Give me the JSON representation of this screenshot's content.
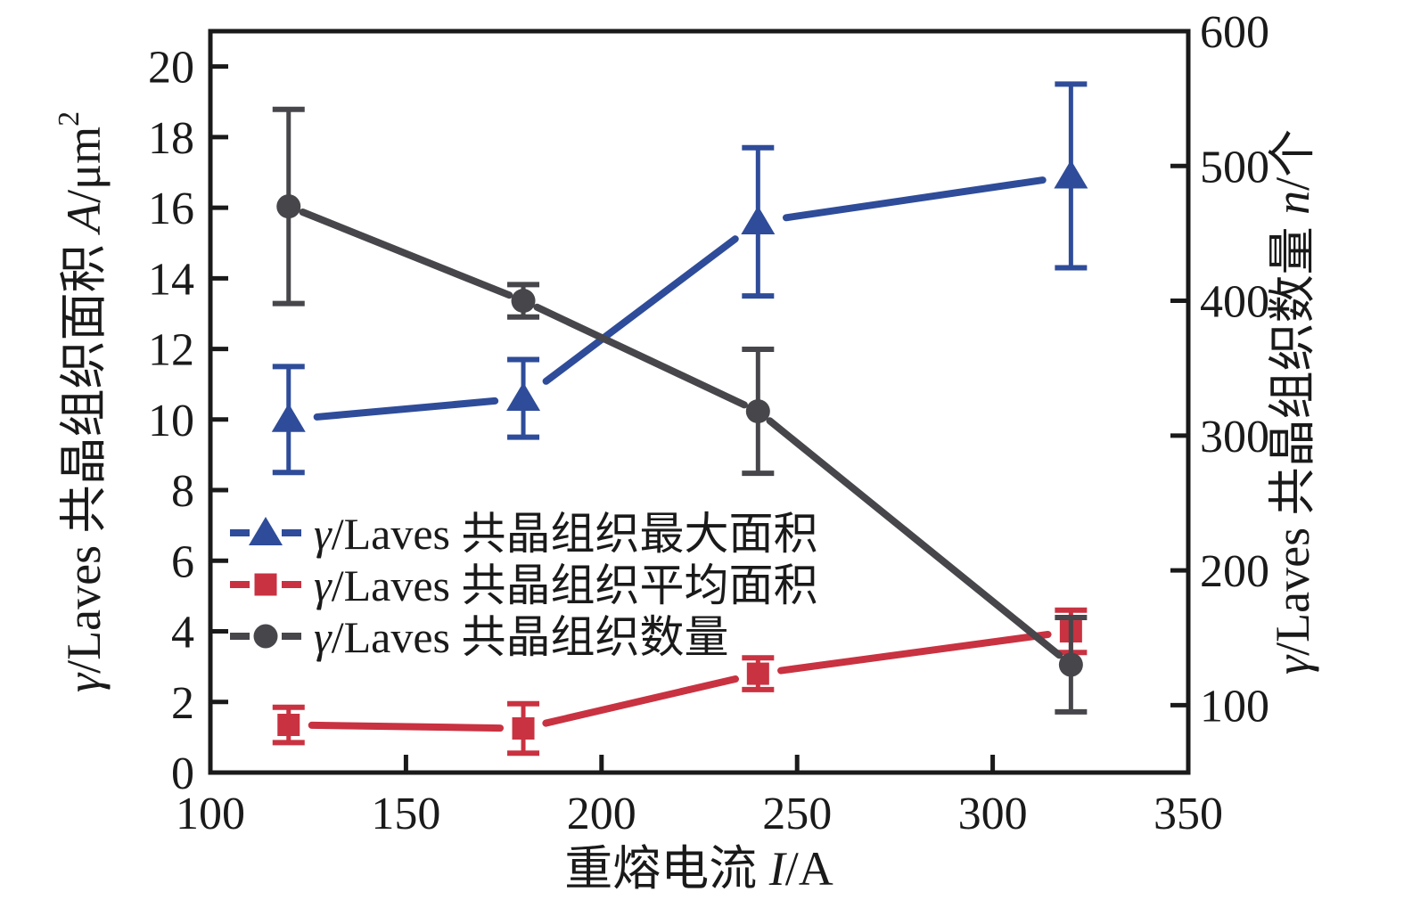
{
  "chart_data": {
    "type": "line",
    "title": "",
    "x": [
      120,
      180,
      240,
      320
    ],
    "x_axis": {
      "title_text": "重熔电流 I/A",
      "title_parts": [
        {
          "t": "重熔电流 "
        },
        {
          "t": "I",
          "i": true
        },
        {
          "t": "/A"
        }
      ],
      "ticks": [
        100,
        150,
        200,
        250,
        300,
        350
      ],
      "range": [
        100,
        350
      ]
    },
    "y_left": {
      "title_text": "γ/Laves 共晶组织面积 A/μm²",
      "title_parts": [
        {
          "t": "γ",
          "i": true
        },
        {
          "t": "/Laves 共晶组织面积 "
        },
        {
          "t": "A",
          "i": true
        },
        {
          "t": "/μm"
        },
        {
          "t": "2",
          "sup": true
        }
      ],
      "ticks": [
        0,
        2,
        4,
        6,
        8,
        10,
        12,
        14,
        16,
        18,
        20
      ],
      "range": [
        0,
        21
      ]
    },
    "y_right": {
      "title_text": "γ/Laves 共晶组织数量 n/个",
      "title_parts": [
        {
          "t": "γ",
          "i": true
        },
        {
          "t": "/Laves 共晶组织数量 "
        },
        {
          "t": "n",
          "i": true
        },
        {
          "t": "/个"
        }
      ],
      "ticks": [
        100,
        200,
        300,
        400,
        500,
        600
      ],
      "range": [
        50,
        600
      ]
    },
    "grid": false,
    "legend_position": "middle-left-inside",
    "series": [
      {
        "key": "max_area",
        "name": "γ/Laves 共晶组织最大面积",
        "name_parts": [
          {
            "t": "γ",
            "i": true
          },
          {
            "t": "/Laves 共晶组织最大面积"
          }
        ],
        "axis": "left",
        "marker": "triangle",
        "color": "#2e4c99",
        "values": [
          10.0,
          10.6,
          15.6,
          16.9
        ],
        "errors": [
          1.5,
          1.1,
          2.1,
          2.6
        ]
      },
      {
        "key": "avg_area",
        "name": "γ/Laves 共晶组织平均面积",
        "name_parts": [
          {
            "t": "γ",
            "i": true
          },
          {
            "t": "/Laves 共晶组织平均面积"
          }
        ],
        "axis": "left",
        "marker": "square",
        "color": "#c93241",
        "values": [
          1.35,
          1.25,
          2.8,
          4.0
        ],
        "errors": [
          0.5,
          0.7,
          0.45,
          0.6
        ]
      },
      {
        "key": "count",
        "name": "γ/Laves 共晶组织数量",
        "name_parts": [
          {
            "t": "γ",
            "i": true
          },
          {
            "t": "/Laves 共晶组织数量"
          }
        ],
        "axis": "right",
        "marker": "circle",
        "color": "#46464b",
        "values": [
          470,
          400,
          318,
          130
        ],
        "errors": [
          72,
          12,
          46,
          35
        ]
      }
    ],
    "colors": {
      "axis": "#1a1a1a",
      "blue_series": "#2e4c99",
      "red_series": "#c93241",
      "gray_series": "#46464b",
      "background": "#ffffff"
    }
  }
}
